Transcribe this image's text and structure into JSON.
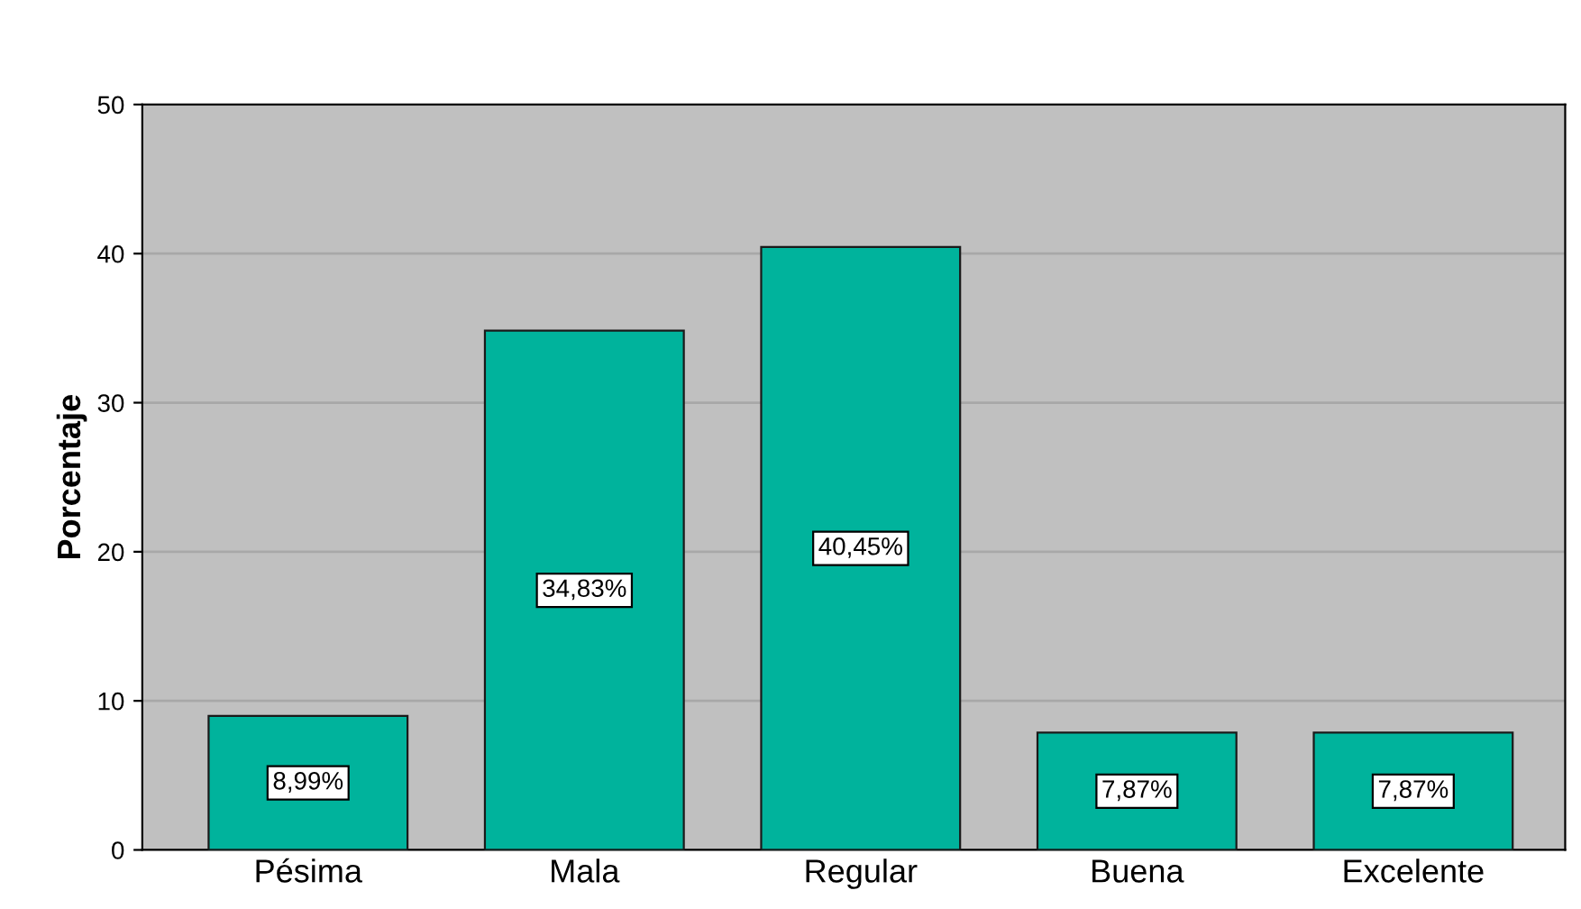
{
  "chart_data": {
    "type": "bar",
    "ylabel": "Porcentaje",
    "categories": [
      "Pésima",
      "Mala",
      "Regular",
      "Buena",
      "Excelente"
    ],
    "values": [
      8.99,
      34.83,
      40.45,
      7.87,
      7.87
    ],
    "value_labels": [
      "8,99%",
      "34,83%",
      "40,45%",
      "7,87%",
      "7,87%"
    ],
    "color": "#00b39c",
    "ylim": [
      0,
      50
    ],
    "yticks": [
      0,
      10,
      20,
      30,
      40,
      50
    ],
    "grid": "y"
  }
}
